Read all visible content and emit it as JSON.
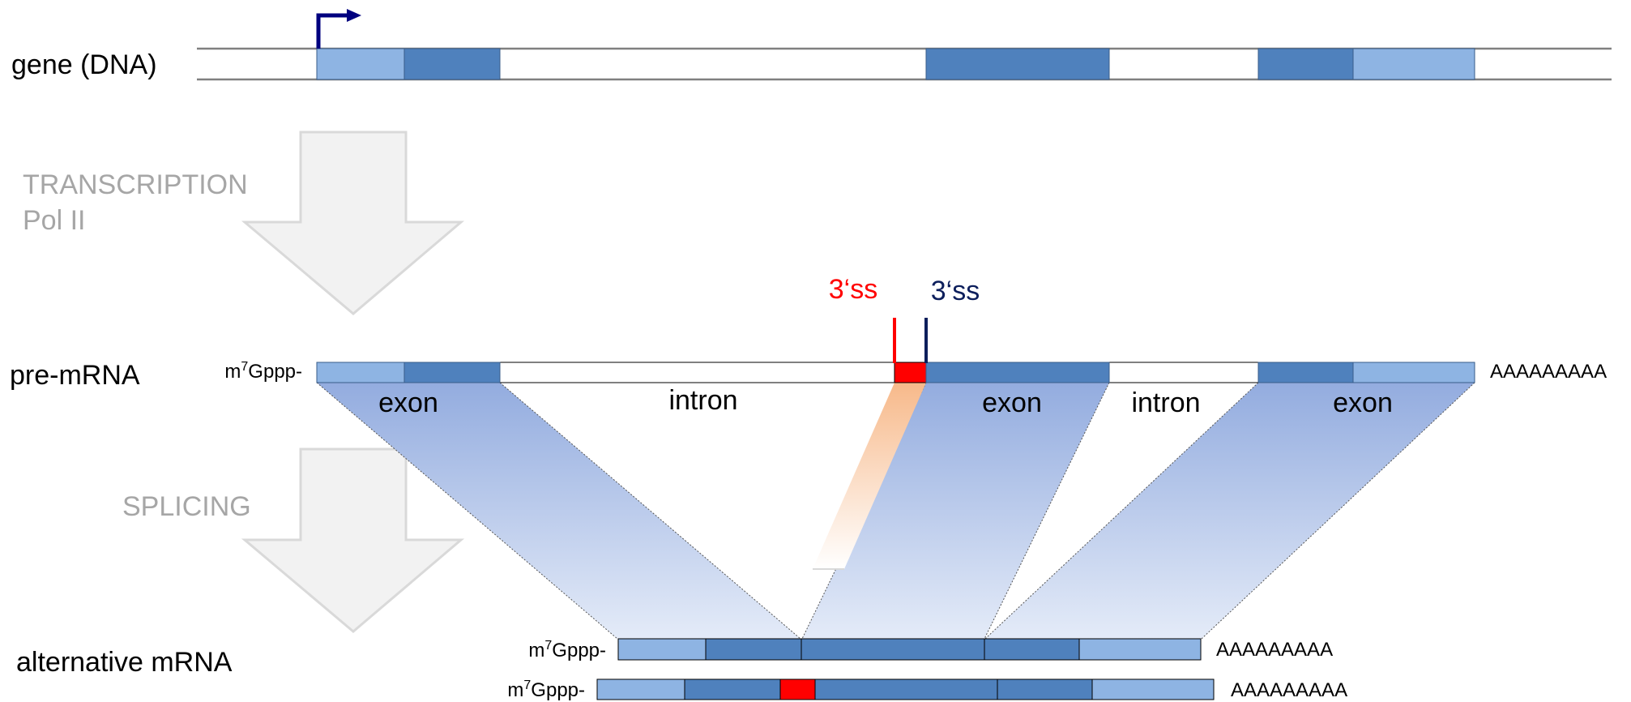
{
  "colors": {
    "utr": "#8eb4e3",
    "cds": "#4f81bd",
    "alt_exon": "#ff0000",
    "ss_proximal": "#ff0000",
    "ss_distal": "#0d1f5c",
    "process_arrow": "#f2f2f2",
    "process_arrow_border": "#d9d9d9",
    "promoter_arrow": "#00007f"
  },
  "rows": {
    "gene": "gene (DNA)",
    "pre_mrna": "pre-mRNA",
    "alt_mrna": "alternative mRNA"
  },
  "processes": {
    "transcription_line1": "TRANSCRIPTION",
    "transcription_line2": "Pol II",
    "splicing": "SPLICING"
  },
  "pre_mrna": {
    "cap_prefix": "m",
    "cap_superscript": "7",
    "cap_suffix": "Gppp-",
    "polyA": "AAAAAAAAA",
    "regions": [
      "exon",
      "intron",
      "exon",
      "intron",
      "exon"
    ]
  },
  "splice_sites": {
    "proximal": "3‘ss",
    "distal": "3‘ss"
  },
  "alt_mrna": {
    "cap_prefix": "m",
    "cap_superscript": "7",
    "cap_suffix": "Gppp-",
    "polyA_1": "AAAAAAAAA",
    "polyA_2": "AAAAAAAAA"
  },
  "icons": {
    "promoter": "promoter-arrow-icon",
    "transcription": "down-arrow-icon",
    "splicing": "down-arrow-icon"
  }
}
